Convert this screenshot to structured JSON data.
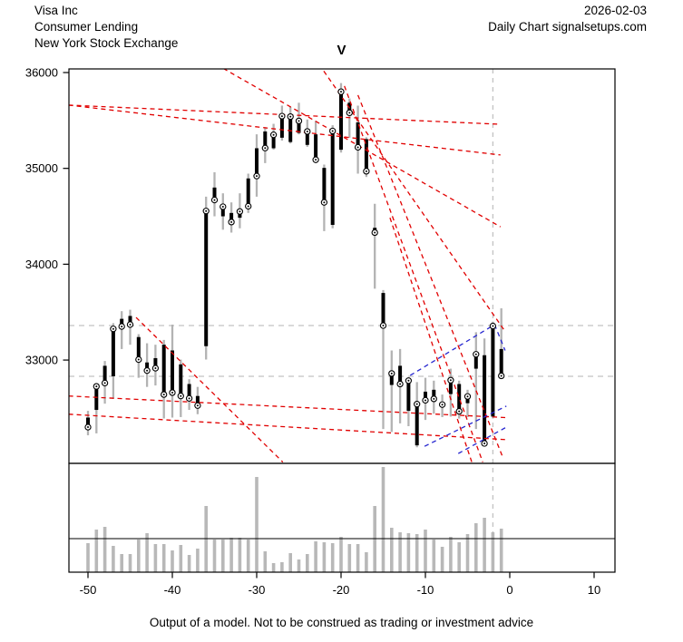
{
  "header": {
    "company": "Visa Inc",
    "industry": "Consumer Lending",
    "exchange": "New York Stock Exchange",
    "date": "2026-02-03",
    "source": "Daily Chart signalsetups.com"
  },
  "title": "V",
  "caption": "Output of a model. Not to be construed as trading or investment advice",
  "colors": {
    "range_line": "#b3b3b3",
    "body": "#000000",
    "close_marker_fill": "#ffffff",
    "trend_red": "#e10000",
    "trend_blue": "#2828d0",
    "signal_gray": "#c2c2c2",
    "volume_bar": "#b8b8b8",
    "axis": "#000000"
  },
  "chart_data": {
    "type": "ohlc+volume",
    "title": "V",
    "x_ticks": [
      -50,
      -40,
      -30,
      -20,
      -10,
      0,
      10
    ],
    "y_ticks": [
      36000,
      35000,
      34000,
      33000
    ],
    "x_range": [
      -52.3,
      12.5
    ],
    "price_range": [
      31920,
      36050
    ],
    "legend": "none",
    "grid": "none",
    "days": [
      -50,
      -49,
      -48,
      -47,
      -46,
      -45,
      -44,
      -43,
      -42,
      -41,
      -40,
      -39,
      -38,
      -37,
      -36,
      -35,
      -34,
      -33,
      -32,
      -31,
      -30,
      -29,
      -28,
      -27,
      -26,
      -25,
      -24,
      -23,
      -22,
      -21,
      -20,
      -19,
      -18,
      -17,
      -16,
      -15,
      -14,
      -13,
      -12,
      -11,
      -10,
      -9,
      -8,
      -7,
      -6,
      -5,
      -4,
      -3,
      -2,
      -1
    ],
    "ohlc": [
      [
        32400,
        32470,
        32215,
        32300
      ],
      [
        32480,
        32760,
        32235,
        32725
      ],
      [
        32940,
        32990,
        32545,
        32760
      ],
      [
        32830,
        33385,
        32595,
        33325
      ],
      [
        33430,
        33510,
        33115,
        33350
      ],
      [
        33460,
        33525,
        33160,
        33370
      ],
      [
        33240,
        33270,
        32815,
        33005
      ],
      [
        32975,
        33175,
        32720,
        32890
      ],
      [
        33020,
        33160,
        32735,
        32915
      ],
      [
        33160,
        33210,
        32390,
        32640
      ],
      [
        33100,
        33370,
        32400,
        32660
      ],
      [
        32955,
        33005,
        32405,
        32625
      ],
      [
        32750,
        32800,
        32480,
        32600
      ],
      [
        32625,
        32720,
        32435,
        32525
      ],
      [
        33145,
        34705,
        33005,
        34555
      ],
      [
        34800,
        34960,
        34500,
        34670
      ],
      [
        34500,
        34740,
        34360,
        34600
      ],
      [
        34535,
        34645,
        34330,
        34440
      ],
      [
        34485,
        34740,
        34375,
        34550
      ],
      [
        34895,
        34945,
        34535,
        34605
      ],
      [
        35210,
        35355,
        34705,
        34920
      ],
      [
        35385,
        35430,
        35055,
        35212
      ],
      [
        35210,
        35465,
        35195,
        35350
      ],
      [
        35320,
        35655,
        35290,
        35545
      ],
      [
        35275,
        35640,
        35260,
        35540
      ],
      [
        35370,
        35685,
        35355,
        35495
      ],
      [
        35245,
        35510,
        35225,
        35385
      ],
      [
        35355,
        35495,
        35055,
        35090
      ],
      [
        35005,
        35040,
        34345,
        34645
      ],
      [
        34410,
        35450,
        34375,
        35390
      ],
      [
        35195,
        35890,
        35165,
        35800
      ],
      [
        35685,
        35730,
        35320,
        35580
      ],
      [
        35480,
        35655,
        34945,
        35220
      ],
      [
        35305,
        35325,
        34910,
        34970
      ],
      [
        34380,
        34630,
        33745,
        34330
      ],
      [
        33700,
        33730,
        32280,
        33360
      ],
      [
        32740,
        33100,
        32250,
        32860
      ],
      [
        32940,
        33115,
        32340,
        32750
      ],
      [
        32470,
        32800,
        32310,
        32785
      ],
      [
        32110,
        32770,
        32090,
        32540
      ],
      [
        32670,
        32815,
        32375,
        32580
      ],
      [
        32690,
        32785,
        32440,
        32595
      ],
      [
        32560,
        32640,
        32405,
        32535
      ],
      [
        32645,
        32910,
        32410,
        32790
      ],
      [
        32750,
        32785,
        32390,
        32465
      ],
      [
        32550,
        32690,
        32405,
        32620
      ],
      [
        32910,
        33290,
        32280,
        33060
      ],
      [
        33050,
        33225,
        32105,
        32130
      ],
      [
        32410,
        33400,
        32390,
        33355
      ],
      [
        33115,
        33540,
        32815,
        32835
      ]
    ],
    "volume_relative": [
      32,
      47,
      50,
      29,
      20,
      20,
      36,
      43,
      31,
      31,
      24,
      30,
      19,
      26,
      73,
      36,
      36,
      38,
      38,
      36,
      105,
      23,
      10,
      11,
      21,
      14,
      20,
      34,
      33,
      32,
      39,
      31,
      31,
      22,
      73,
      116,
      49,
      44,
      43,
      42,
      47,
      36,
      28,
      39,
      33,
      42,
      54,
      60,
      44,
      48
    ],
    "signal_levels": [
      33360,
      32830
    ],
    "signal_vline_day": -2,
    "red_lines": [
      [
        -52.3,
        35660,
        -1.1,
        35460
      ],
      [
        -52.3,
        35660,
        -1.1,
        35140
      ],
      [
        -34.8,
        36085,
        -1.1,
        34390
      ],
      [
        -22.6,
        36085,
        -0.6,
        33305
      ],
      [
        -19.6,
        35860,
        -3.2,
        31935
      ],
      [
        -18.0,
        35765,
        -0.8,
        31980
      ],
      [
        -14.2,
        34485,
        -4.5,
        31935
      ],
      [
        -44.3,
        33445,
        -26.9,
        31935
      ],
      [
        -52.3,
        32625,
        -0.5,
        32400
      ],
      [
        -52.3,
        32435,
        -0.5,
        32170
      ]
    ],
    "blue_lines": [
      [
        -11.8,
        32840,
        -1.8,
        33370
      ],
      [
        -1.8,
        33370,
        -0.55,
        33100
      ],
      [
        -10.1,
        32100,
        -0.4,
        32520
      ],
      [
        -6.1,
        32025,
        -0.4,
        32300
      ]
    ]
  }
}
